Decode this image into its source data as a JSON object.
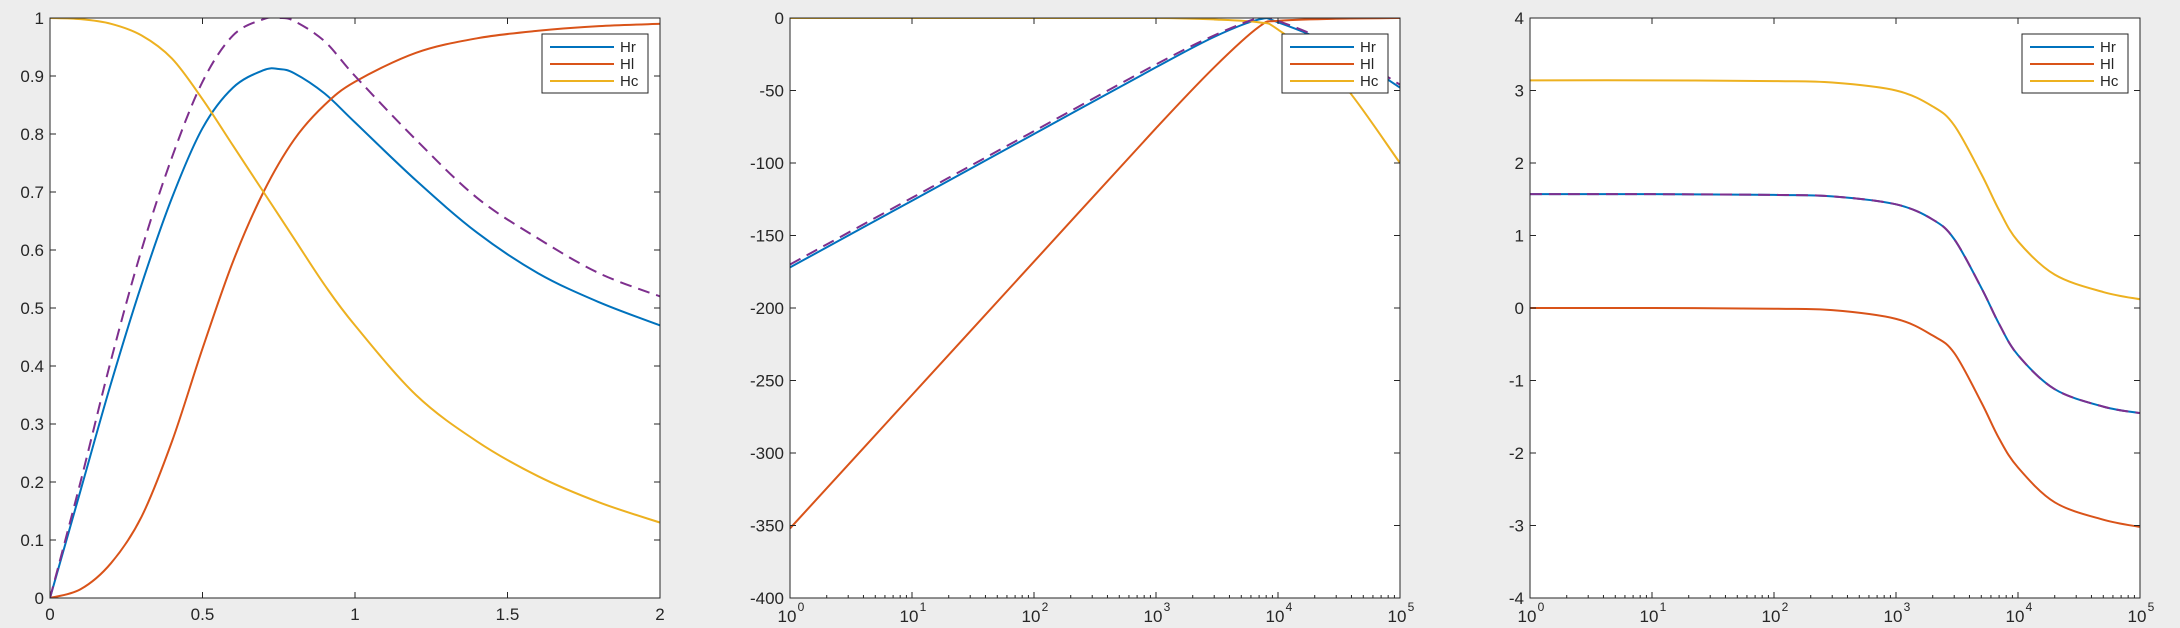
{
  "chart_data": [
    {
      "type": "line",
      "xscale": "linear",
      "xlim": [
        0,
        2
      ],
      "ylim": [
        0,
        1
      ],
      "xticks": [
        0,
        0.5,
        1,
        1.5,
        2
      ],
      "xtick_labels": [
        "0",
        "0.5",
        "1",
        "1.5",
        "2"
      ],
      "yticks": [
        0,
        0.1,
        0.2,
        0.3,
        0.4,
        0.5,
        0.6,
        0.7,
        0.8,
        0.9,
        1
      ],
      "ytick_labels": [
        "0",
        "0.1",
        "0.2",
        "0.3",
        "0.4",
        "0.5",
        "0.6",
        "0.7",
        "0.8",
        "0.9",
        "1"
      ],
      "grid": false,
      "legend": "top-right",
      "series": [
        {
          "name": "Hr",
          "color": "#0072BD",
          "style": "solid",
          "x": [
            0,
            0.1,
            0.2,
            0.3,
            0.4,
            0.5,
            0.6,
            0.7,
            0.75,
            0.8,
            0.9,
            1.0,
            1.2,
            1.4,
            1.6,
            1.8,
            2.0
          ],
          "y": [
            0,
            0.185,
            0.37,
            0.54,
            0.69,
            0.81,
            0.88,
            0.91,
            0.912,
            0.905,
            0.87,
            0.82,
            0.72,
            0.63,
            0.56,
            0.51,
            0.47
          ]
        },
        {
          "name": "Hl",
          "color": "#D95319",
          "style": "solid",
          "x": [
            0,
            0.1,
            0.2,
            0.3,
            0.4,
            0.5,
            0.6,
            0.7,
            0.8,
            0.9,
            1.0,
            1.2,
            1.4,
            1.6,
            1.8,
            2.0
          ],
          "y": [
            0,
            0.015,
            0.06,
            0.14,
            0.27,
            0.43,
            0.58,
            0.7,
            0.79,
            0.85,
            0.89,
            0.94,
            0.965,
            0.978,
            0.986,
            0.99
          ]
        },
        {
          "name": "Hc",
          "color": "#EDB120",
          "style": "solid",
          "x": [
            0,
            0.1,
            0.2,
            0.3,
            0.4,
            0.5,
            0.6,
            0.7,
            0.8,
            0.9,
            1.0,
            1.2,
            1.4,
            1.6,
            1.8,
            2.0
          ],
          "y": [
            1,
            0.998,
            0.99,
            0.97,
            0.93,
            0.86,
            0.78,
            0.7,
            0.62,
            0.54,
            0.47,
            0.35,
            0.27,
            0.21,
            0.165,
            0.13
          ]
        },
        {
          "color": "#7E2F8E",
          "style": "dashed",
          "x": [
            0,
            0.1,
            0.2,
            0.3,
            0.4,
            0.5,
            0.6,
            0.7,
            0.75,
            0.8,
            0.9,
            1.0,
            1.2,
            1.4,
            1.6,
            1.8,
            2.0
          ],
          "y": [
            0,
            0.2,
            0.41,
            0.6,
            0.76,
            0.89,
            0.97,
            0.998,
            1.0,
            0.995,
            0.96,
            0.9,
            0.79,
            0.69,
            0.62,
            0.56,
            0.52
          ]
        }
      ]
    },
    {
      "type": "line",
      "xscale": "log",
      "xlim": [
        1,
        100000
      ],
      "ylim": [
        -400,
        0
      ],
      "xticks": [
        1,
        10,
        100,
        1000,
        10000,
        100000
      ],
      "xtick_labels": [
        {
          "base": "10",
          "exp": "0"
        },
        {
          "base": "10",
          "exp": "1"
        },
        {
          "base": "10",
          "exp": "2"
        },
        {
          "base": "10",
          "exp": "3"
        },
        {
          "base": "10",
          "exp": "4"
        },
        {
          "base": "10",
          "exp": "5"
        }
      ],
      "yticks": [
        -400,
        -350,
        -300,
        -250,
        -200,
        -150,
        -100,
        -50,
        0
      ],
      "ytick_labels": [
        "-400",
        "-350",
        "-300",
        "-250",
        "-200",
        "-150",
        "-100",
        "-50",
        "0"
      ],
      "grid": false,
      "legend": "top-right",
      "series": [
        {
          "name": "Hr",
          "color": "#0072BD",
          "style": "solid",
          "x": [
            1,
            10,
            100,
            1000,
            3000,
            7000,
            10000,
            30000,
            100000
          ],
          "y": [
            -172,
            -126,
            -80,
            -34,
            -13,
            -1,
            -3,
            -20,
            -48
          ]
        },
        {
          "name": "Hl",
          "color": "#D95319",
          "style": "solid",
          "x": [
            1,
            10,
            100,
            1000,
            3000,
            7000,
            10000,
            30000,
            100000
          ],
          "y": [
            -352,
            -260,
            -168,
            -76,
            -34,
            -6,
            -2,
            -0.5,
            0
          ]
        },
        {
          "name": "Hc",
          "color": "#EDB120",
          "style": "solid",
          "x": [
            1,
            10,
            100,
            1000,
            3000,
            7000,
            10000,
            30000,
            100000
          ],
          "y": [
            0,
            0,
            0,
            0,
            -1,
            -3,
            -8,
            -40,
            -100
          ]
        },
        {
          "color": "#7E2F8E",
          "style": "dashed",
          "x": [
            1,
            10,
            100,
            1000,
            3000,
            7000,
            10000,
            30000,
            100000
          ],
          "y": [
            -170,
            -124,
            -78,
            -32,
            -12,
            0,
            -2,
            -19,
            -46
          ]
        }
      ]
    },
    {
      "type": "line",
      "xscale": "log",
      "xlim": [
        1,
        100000
      ],
      "ylim": [
        -4,
        4
      ],
      "xticks": [
        1,
        10,
        100,
        1000,
        10000,
        100000
      ],
      "xtick_labels": [
        {
          "base": "10",
          "exp": "0"
        },
        {
          "base": "10",
          "exp": "1"
        },
        {
          "base": "10",
          "exp": "2"
        },
        {
          "base": "10",
          "exp": "3"
        },
        {
          "base": "10",
          "exp": "4"
        },
        {
          "base": "10",
          "exp": "5"
        }
      ],
      "yticks": [
        -4,
        -3,
        -2,
        -1,
        0,
        1,
        2,
        3,
        4
      ],
      "ytick_labels": [
        "-4",
        "-3",
        "-2",
        "-1",
        "0",
        "1",
        "2",
        "3",
        "4"
      ],
      "grid": false,
      "legend": "top-right",
      "series": [
        {
          "name": "Hr",
          "color": "#0072BD",
          "style": "solid",
          "x": [
            1,
            10,
            100,
            300,
            1000,
            2000,
            3000,
            5000,
            7000,
            10000,
            20000,
            50000,
            100000
          ],
          "y": [
            1.57,
            1.57,
            1.56,
            1.54,
            1.43,
            1.22,
            0.95,
            0.28,
            -0.22,
            -0.65,
            -1.12,
            -1.36,
            -1.45
          ]
        },
        {
          "name": "Hl",
          "color": "#D95319",
          "style": "solid",
          "x": [
            1,
            10,
            100,
            300,
            1000,
            2000,
            3000,
            5000,
            7000,
            10000,
            20000,
            50000,
            100000
          ],
          "y": [
            0,
            0,
            -0.01,
            -0.03,
            -0.15,
            -0.38,
            -0.62,
            -1.3,
            -1.8,
            -2.2,
            -2.68,
            -2.92,
            -3.02
          ]
        },
        {
          "name": "Hc",
          "color": "#EDB120",
          "style": "solid",
          "x": [
            1,
            10,
            100,
            300,
            1000,
            2000,
            3000,
            5000,
            7000,
            10000,
            20000,
            50000,
            100000
          ],
          "y": [
            3.14,
            3.14,
            3.13,
            3.11,
            3.0,
            2.78,
            2.52,
            1.85,
            1.35,
            0.92,
            0.46,
            0.22,
            0.12
          ]
        },
        {
          "color": "#7E2F8E",
          "style": "dashed",
          "x": [
            1,
            10,
            100,
            300,
            1000,
            2000,
            3000,
            5000,
            7000,
            10000,
            20000,
            50000,
            100000
          ],
          "y": [
            1.57,
            1.57,
            1.56,
            1.54,
            1.43,
            1.22,
            0.95,
            0.28,
            -0.22,
            -0.65,
            -1.12,
            -1.36,
            -1.45
          ]
        }
      ]
    }
  ]
}
